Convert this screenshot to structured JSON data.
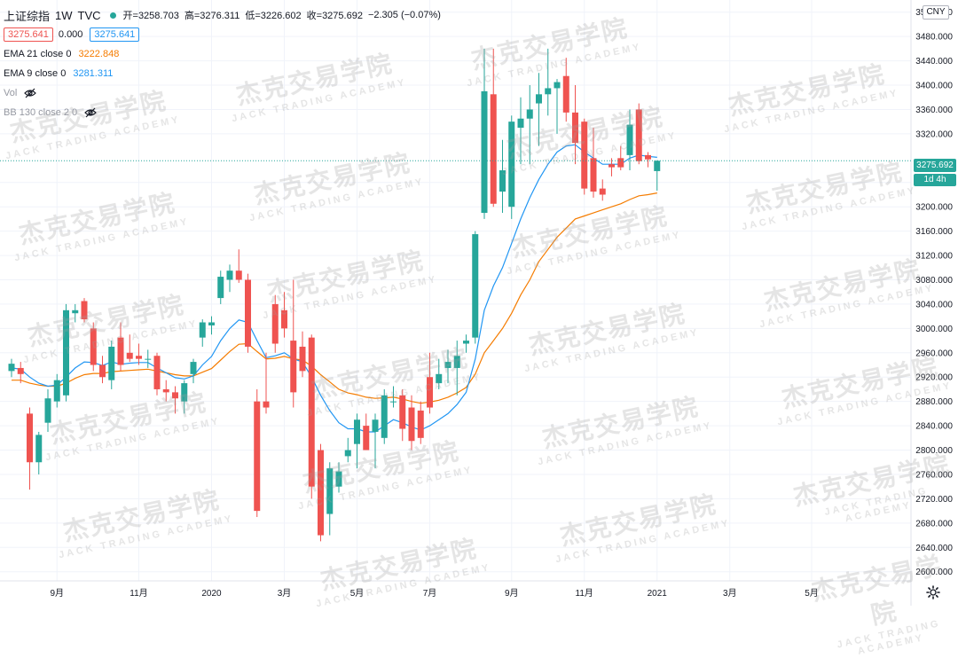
{
  "header": {
    "symbol": "上证综指",
    "interval": "1W",
    "source": "TVC",
    "open_label": "开",
    "open": "=3258.703",
    "high_label": "高",
    "high": "=3276.311",
    "low_label": "低",
    "low": "=3226.602",
    "close_label": "收",
    "close": "=3275.692",
    "change": "−2.305 (−0.07%)",
    "bid": "3275.641",
    "spread": "0.000",
    "ask": "3275.641"
  },
  "indicators": {
    "ema21_label": "EMA 21 close 0",
    "ema21_value": "3222.848",
    "ema9_label": "EMA 9 close 0",
    "ema9_value": "3281.311",
    "vol_label": "Vol",
    "bb_label": "BB 130 close 2 0"
  },
  "right_axis": {
    "currency": "CNY",
    "last_price": "3275.692",
    "interval_tag": "1d 4h",
    "ticks": [
      "3520.000",
      "3480.000",
      "3440.000",
      "3400.000",
      "3360.000",
      "3320.000",
      "3240.000",
      "3200.000",
      "3160.000",
      "3120.000",
      "3080.000",
      "3040.000",
      "3000.000",
      "2960.000",
      "2920.000",
      "2880.000",
      "2840.000",
      "2800.000",
      "2760.000",
      "2720.000",
      "2680.000",
      "2640.000",
      "2600.000"
    ]
  },
  "watermark": {
    "cn": "杰克交易学院",
    "en": "JACK TRADING ACADEMY"
  },
  "colors": {
    "up": "#26a69a",
    "down": "#ef5350",
    "ema9": "#2196f3",
    "ema21": "#f57c00",
    "grid": "#f0f3fa"
  },
  "chart_data": {
    "type": "candlestick",
    "ylim": [
      2585,
      3540
    ],
    "x_ticks": [
      {
        "label": "9月",
        "week": 5
      },
      {
        "label": "11月",
        "week": 14
      },
      {
        "label": "2020",
        "week": 22
      },
      {
        "label": "3月",
        "week": 30
      },
      {
        "label": "5月",
        "week": 38
      },
      {
        "label": "7月",
        "week": 46
      },
      {
        "label": "9月",
        "week": 55
      },
      {
        "label": "11月",
        "week": 63
      },
      {
        "label": "2021",
        "week": 71
      },
      {
        "label": "3月",
        "week": 79
      },
      {
        "label": "5月",
        "week": 88
      }
    ],
    "candles": [
      {
        "o": 2930,
        "h": 2950,
        "l": 2920,
        "c": 2942
      },
      {
        "o": 2935,
        "h": 2945,
        "l": 2910,
        "c": 2925
      },
      {
        "o": 2860,
        "h": 2870,
        "l": 2735,
        "c": 2780
      },
      {
        "o": 2780,
        "h": 2830,
        "l": 2760,
        "c": 2825
      },
      {
        "o": 2845,
        "h": 2900,
        "l": 2830,
        "c": 2885
      },
      {
        "o": 2880,
        "h": 2925,
        "l": 2870,
        "c": 2915
      },
      {
        "o": 2890,
        "h": 3040,
        "l": 2880,
        "c": 3030
      },
      {
        "o": 3025,
        "h": 3040,
        "l": 3010,
        "c": 3030
      },
      {
        "o": 3045,
        "h": 3050,
        "l": 3010,
        "c": 3015
      },
      {
        "o": 3000,
        "h": 3010,
        "l": 2930,
        "c": 2940
      },
      {
        "o": 2940,
        "h": 2955,
        "l": 2910,
        "c": 2920
      },
      {
        "o": 2915,
        "h": 2980,
        "l": 2900,
        "c": 2970
      },
      {
        "o": 2985,
        "h": 3010,
        "l": 2930,
        "c": 2940
      },
      {
        "o": 2960,
        "h": 2990,
        "l": 2945,
        "c": 2950
      },
      {
        "o": 2955,
        "h": 2975,
        "l": 2940,
        "c": 2950
      },
      {
        "o": 2950,
        "h": 2965,
        "l": 2935,
        "c": 2950
      },
      {
        "o": 2955,
        "h": 2960,
        "l": 2890,
        "c": 2900
      },
      {
        "o": 2900,
        "h": 2915,
        "l": 2880,
        "c": 2895
      },
      {
        "o": 2895,
        "h": 2905,
        "l": 2860,
        "c": 2885
      },
      {
        "o": 2880,
        "h": 2915,
        "l": 2860,
        "c": 2910
      },
      {
        "o": 2925,
        "h": 2950,
        "l": 2910,
        "c": 2945
      },
      {
        "o": 2985,
        "h": 3015,
        "l": 2970,
        "c": 3010
      },
      {
        "o": 3005,
        "h": 3020,
        "l": 2990,
        "c": 3010
      },
      {
        "o": 3050,
        "h": 3095,
        "l": 3040,
        "c": 3085
      },
      {
        "o": 3080,
        "h": 3105,
        "l": 3060,
        "c": 3095
      },
      {
        "o": 3095,
        "h": 3130,
        "l": 3075,
        "c": 3080
      },
      {
        "o": 3080,
        "h": 3090,
        "l": 2960,
        "c": 2970
      },
      {
        "o": 2880,
        "h": 2900,
        "l": 2690,
        "c": 2700
      },
      {
        "o": 2880,
        "h": 2960,
        "l": 2860,
        "c": 2870
      },
      {
        "o": 3040,
        "h": 3055,
        "l": 2960,
        "c": 2975
      },
      {
        "o": 3030,
        "h": 3060,
        "l": 2985,
        "c": 3000
      },
      {
        "o": 2980,
        "h": 3080,
        "l": 2870,
        "c": 2895
      },
      {
        "o": 2970,
        "h": 2995,
        "l": 2920,
        "c": 2930
      },
      {
        "o": 2985,
        "h": 2990,
        "l": 2720,
        "c": 2740
      },
      {
        "o": 2800,
        "h": 2810,
        "l": 2650,
        "c": 2660
      },
      {
        "o": 2695,
        "h": 2780,
        "l": 2660,
        "c": 2770
      },
      {
        "o": 2740,
        "h": 2780,
        "l": 2730,
        "c": 2765
      },
      {
        "o": 2790,
        "h": 2820,
        "l": 2780,
        "c": 2800
      },
      {
        "o": 2810,
        "h": 2860,
        "l": 2770,
        "c": 2850
      },
      {
        "o": 2840,
        "h": 2860,
        "l": 2800,
        "c": 2800
      },
      {
        "o": 2830,
        "h": 2860,
        "l": 2770,
        "c": 2850
      },
      {
        "o": 2820,
        "h": 2900,
        "l": 2810,
        "c": 2890
      },
      {
        "o": 2880,
        "h": 2905,
        "l": 2870,
        "c": 2880
      },
      {
        "o": 2890,
        "h": 2900,
        "l": 2815,
        "c": 2835
      },
      {
        "o": 2870,
        "h": 2890,
        "l": 2800,
        "c": 2815
      },
      {
        "o": 2865,
        "h": 2880,
        "l": 2810,
        "c": 2820
      },
      {
        "o": 2920,
        "h": 2960,
        "l": 2860,
        "c": 2870
      },
      {
        "o": 2910,
        "h": 2950,
        "l": 2900,
        "c": 2925
      },
      {
        "o": 2935,
        "h": 2965,
        "l": 2910,
        "c": 2945
      },
      {
        "o": 2935,
        "h": 2980,
        "l": 2890,
        "c": 2955
      },
      {
        "o": 2975,
        "h": 2990,
        "l": 2960,
        "c": 2980
      },
      {
        "o": 2985,
        "h": 3160,
        "l": 2975,
        "c": 3155
      },
      {
        "o": 3190,
        "h": 3460,
        "l": 3180,
        "c": 3390
      },
      {
        "o": 3385,
        "h": 3460,
        "l": 3200,
        "c": 3205
      },
      {
        "o": 3225,
        "h": 3310,
        "l": 3190,
        "c": 3260
      },
      {
        "o": 3200,
        "h": 3350,
        "l": 3180,
        "c": 3340
      },
      {
        "o": 3330,
        "h": 3380,
        "l": 3270,
        "c": 3345
      },
      {
        "o": 3345,
        "h": 3400,
        "l": 3270,
        "c": 3360
      },
      {
        "o": 3370,
        "h": 3420,
        "l": 3300,
        "c": 3385
      },
      {
        "o": 3385,
        "h": 3460,
        "l": 3350,
        "c": 3395
      },
      {
        "o": 3395,
        "h": 3410,
        "l": 3320,
        "c": 3405
      },
      {
        "o": 3415,
        "h": 3445,
        "l": 3340,
        "c": 3355
      },
      {
        "o": 3355,
        "h": 3400,
        "l": 3270,
        "c": 3305
      },
      {
        "o": 3340,
        "h": 3345,
        "l": 3220,
        "c": 3230
      },
      {
        "o": 3280,
        "h": 3330,
        "l": 3215,
        "c": 3225
      },
      {
        "o": 3230,
        "h": 3245,
        "l": 3210,
        "c": 3220
      },
      {
        "o": 3270,
        "h": 3280,
        "l": 3250,
        "c": 3265
      },
      {
        "o": 3280,
        "h": 3300,
        "l": 3260,
        "c": 3265
      },
      {
        "o": 3285,
        "h": 3360,
        "l": 3260,
        "c": 3335
      },
      {
        "o": 3360,
        "h": 3370,
        "l": 3270,
        "c": 3275
      },
      {
        "o": 3285,
        "h": 3290,
        "l": 3265,
        "c": 3278
      },
      {
        "o": 3258.7,
        "h": 3276.3,
        "l": 3226.6,
        "c": 3275.7
      }
    ],
    "ema9": [
      2935,
      2933,
      2920,
      2910,
      2905,
      2907,
      2920,
      2935,
      2945,
      2944,
      2939,
      2945,
      2941,
      2943,
      2944,
      2944,
      2935,
      2927,
      2919,
      2917,
      2922,
      2940,
      2954,
      2980,
      3000,
      3014,
      3010,
      2980,
      2952,
      2955,
      2960,
      2950,
      2945,
      2920,
      2890,
      2865,
      2845,
      2835,
      2835,
      2830,
      2830,
      2840,
      2850,
      2845,
      2838,
      2833,
      2840,
      2850,
      2860,
      2875,
      2895,
      2950,
      3030,
      3070,
      3100,
      3140,
      3180,
      3215,
      3245,
      3270,
      3290,
      3300,
      3302,
      3290,
      3280,
      3270,
      3270,
      3270,
      3280,
      3285,
      3283,
      3281.3
    ],
    "ema21": [
      2915,
      2915,
      2910,
      2907,
      2905,
      2905,
      2910,
      2918,
      2924,
      2926,
      2926,
      2929,
      2930,
      2931,
      2932,
      2933,
      2930,
      2927,
      2924,
      2922,
      2922,
      2928,
      2934,
      2948,
      2962,
      2974,
      2975,
      2962,
      2950,
      2951,
      2954,
      2950,
      2948,
      2938,
      2924,
      2912,
      2900,
      2894,
      2891,
      2887,
      2885,
      2886,
      2887,
      2884,
      2880,
      2877,
      2879,
      2882,
      2887,
      2894,
      2903,
      2925,
      2960,
      2980,
      3000,
      3025,
      3055,
      3080,
      3110,
      3130,
      3150,
      3165,
      3180,
      3185,
      3190,
      3195,
      3200,
      3205,
      3212,
      3218,
      3220,
      3222.8
    ]
  }
}
